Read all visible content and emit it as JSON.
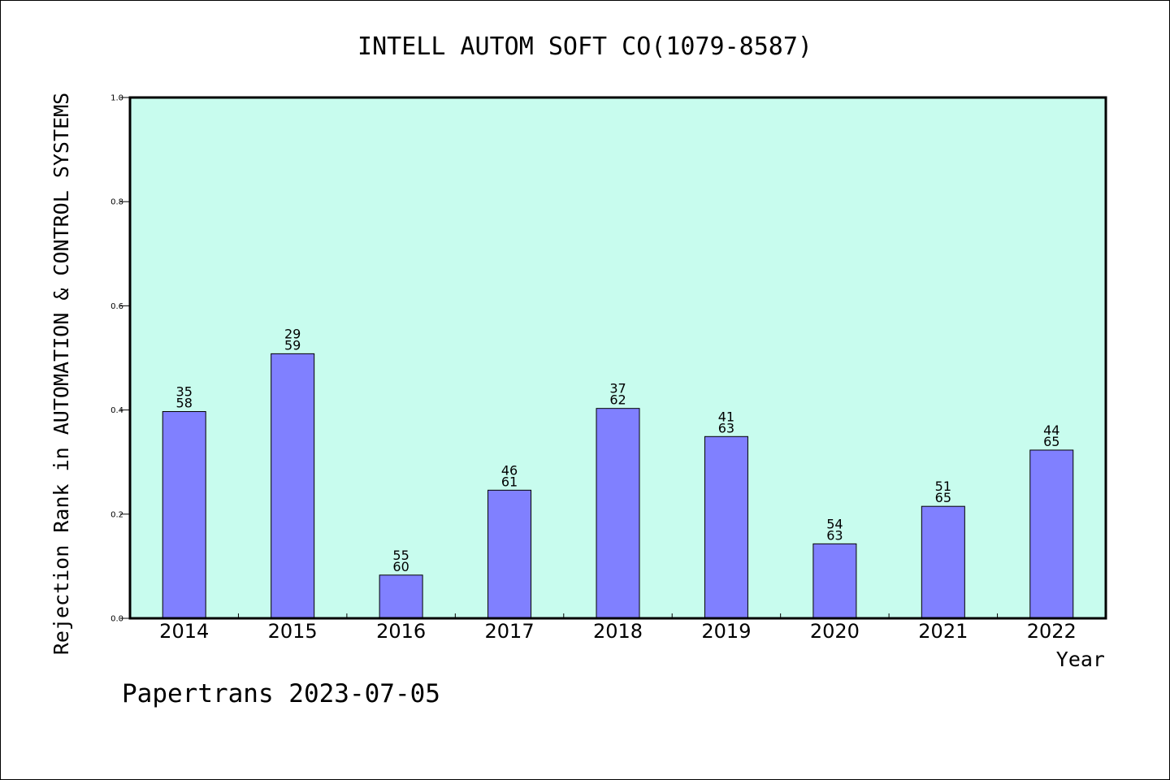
{
  "chart_data": {
    "type": "bar",
    "title": "INTELL AUTOM SOFT CO(1079-8587)",
    "ylabel": "Rejection Rank in AUTOMATION & CONTROL SYSTEMS",
    "xlabel": "Year",
    "footer": "Papertrans 2023-07-05",
    "categories": [
      "2014",
      "2015",
      "2016",
      "2017",
      "2018",
      "2019",
      "2020",
      "2021",
      "2022"
    ],
    "values": [
      0.397,
      0.508,
      0.083,
      0.246,
      0.403,
      0.349,
      0.143,
      0.215,
      0.323
    ],
    "labels": [
      [
        "35",
        "58"
      ],
      [
        "29",
        "59"
      ],
      [
        "55",
        "60"
      ],
      [
        "46",
        "61"
      ],
      [
        "37",
        "62"
      ],
      [
        "41",
        "63"
      ],
      [
        "54",
        "63"
      ],
      [
        "51",
        "65"
      ],
      [
        "44",
        "65"
      ]
    ],
    "ylim": [
      0,
      1.0
    ],
    "yticks": [
      "0.0",
      "0.2",
      "0.4",
      "0.6",
      "0.8",
      "1.0"
    ],
    "grid": false,
    "colors": {
      "plot_background": "#c8fcee",
      "bar_fill": "#8080ff",
      "bar_stroke": "#000000"
    }
  }
}
